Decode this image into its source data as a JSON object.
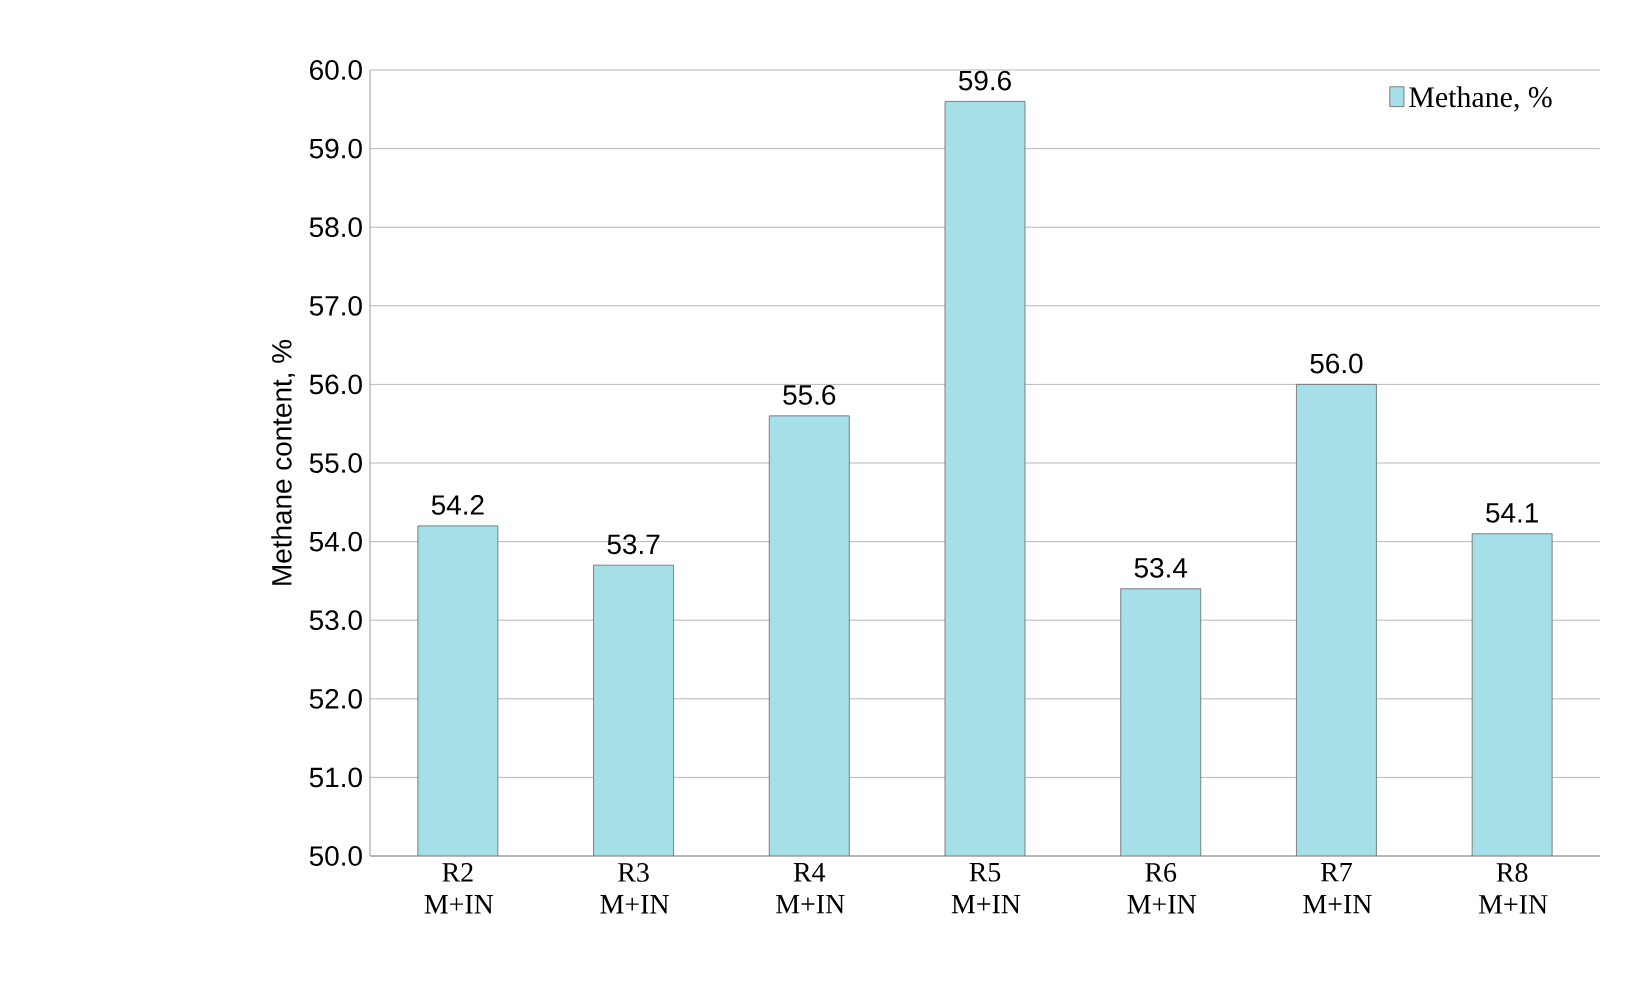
{
  "chart_data": {
    "type": "bar",
    "ylabel": "Methane content,  %",
    "categories": [
      "R2 M+IN",
      "R3 M+IN",
      "R4 M+IN",
      "R5 M+IN",
      "R6 M+IN",
      "R7 M+IN",
      "R8 M+IN"
    ],
    "series": [
      {
        "name": "Methane, %",
        "color": "#a5dfe8",
        "values": [
          54.2,
          53.7,
          55.6,
          59.6,
          53.4,
          56.0,
          54.1
        ],
        "value_labels": [
          "54.2",
          "53.7",
          "55.6",
          "59.6",
          "53.4",
          "56.0",
          "54.1"
        ]
      }
    ],
    "ylim": [
      50,
      60
    ],
    "yticks": [
      {
        "value": 50,
        "label": "50.0"
      },
      {
        "value": 51,
        "label": "51.0"
      },
      {
        "value": 52,
        "label": "52.0"
      },
      {
        "value": 53,
        "label": "53.0"
      },
      {
        "value": 54,
        "label": "54.0"
      },
      {
        "value": 55,
        "label": "55.0"
      },
      {
        "value": 56,
        "label": "56.0"
      },
      {
        "value": 57,
        "label": "57.0"
      },
      {
        "value": 58,
        "label": "58.0"
      },
      {
        "value": 59,
        "label": "59.0"
      },
      {
        "value": 60,
        "label": "60.0"
      }
    ],
    "grid": "y",
    "legend": "top right"
  }
}
